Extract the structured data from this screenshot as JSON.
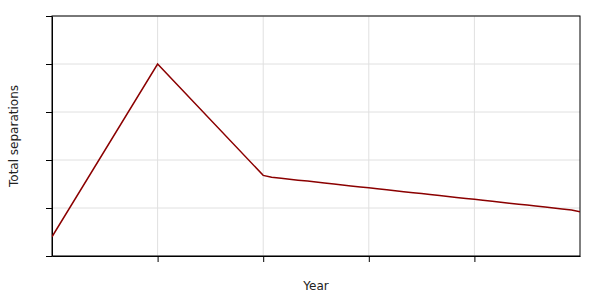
{
  "chart_data": {
    "type": "line",
    "xlabel": "Year",
    "ylabel": "Total separations",
    "x": [
      2019,
      2020,
      2021,
      2021.08,
      2021.17,
      2021.25,
      2021.33,
      2021.42,
      2021.5,
      2021.58,
      2021.67,
      2021.75,
      2021.83,
      2021.92,
      2022,
      2022.08,
      2022.17,
      2022.25,
      2022.33,
      2022.42,
      2022.5,
      2022.58,
      2022.67,
      2022.75,
      2022.83,
      2022.92,
      2023,
      2023.08,
      2023.17,
      2023.25,
      2023.33,
      2023.42,
      2023.5,
      2023.58,
      2023.67,
      2023.75,
      2023.83,
      2023.92,
      2024
    ],
    "values": [
      10,
      100,
      42,
      41,
      40.5,
      40,
      39.5,
      39,
      38.5,
      38,
      37.5,
      37,
      36.5,
      36,
      35.5,
      35,
      34.5,
      34,
      33.5,
      33,
      32.5,
      32,
      31.5,
      31,
      30.5,
      30,
      29.5,
      29,
      28.5,
      28,
      27.5,
      27,
      26.5,
      26,
      25.5,
      25,
      24.5,
      24,
      23
    ],
    "color": "#8B0000",
    "xlim": [
      2019,
      2024
    ],
    "xticks": [
      2020,
      2021,
      2022,
      2023
    ],
    "ylim": [
      0,
      125
    ],
    "yticks": [
      0,
      25,
      50,
      75,
      100,
      125
    ],
    "grid": true,
    "tick_labels": false
  }
}
